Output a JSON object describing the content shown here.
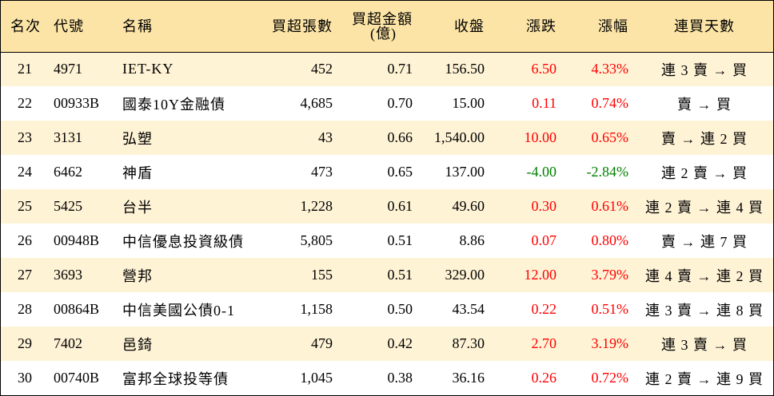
{
  "headers": {
    "rank": "名次",
    "code": "代號",
    "name": "名稱",
    "net_buy_lots": "買超張數",
    "net_buy_amount_line1": "買超金額",
    "net_buy_amount_line2": "(億)",
    "close": "收盤",
    "change": "漲跌",
    "change_pct": "漲幅",
    "buy_days": "連買天數"
  },
  "rows": [
    {
      "rank": "21",
      "code": "4971",
      "name": "IET-KY",
      "lots": "452",
      "amount": "0.71",
      "close": "156.50",
      "change": "6.50",
      "pct": "4.33%",
      "days": "連 3 賣 → 買",
      "dir": "up"
    },
    {
      "rank": "22",
      "code": "00933B",
      "name": "國泰10Y金融債",
      "lots": "4,685",
      "amount": "0.70",
      "close": "15.00",
      "change": "0.11",
      "pct": "0.74%",
      "days": "賣 → 買",
      "dir": "up"
    },
    {
      "rank": "23",
      "code": "3131",
      "name": "弘塑",
      "lots": "43",
      "amount": "0.66",
      "close": "1,540.00",
      "change": "10.00",
      "pct": "0.65%",
      "days": "賣 → 連 2 買",
      "dir": "up"
    },
    {
      "rank": "24",
      "code": "6462",
      "name": "神盾",
      "lots": "473",
      "amount": "0.65",
      "close": "137.00",
      "change": "-4.00",
      "pct": "-2.84%",
      "days": "連 2 賣 → 買",
      "dir": "down"
    },
    {
      "rank": "25",
      "code": "5425",
      "name": "台半",
      "lots": "1,228",
      "amount": "0.61",
      "close": "49.60",
      "change": "0.30",
      "pct": "0.61%",
      "days": "連 2 賣 → 連 4 買",
      "dir": "up"
    },
    {
      "rank": "26",
      "code": "00948B",
      "name": "中信優息投資級債",
      "lots": "5,805",
      "amount": "0.51",
      "close": "8.86",
      "change": "0.07",
      "pct": "0.80%",
      "days": "賣 → 連 7 買",
      "dir": "up"
    },
    {
      "rank": "27",
      "code": "3693",
      "name": "營邦",
      "lots": "155",
      "amount": "0.51",
      "close": "329.00",
      "change": "12.00",
      "pct": "3.79%",
      "days": "連 4 賣 → 連 2 買",
      "dir": "up"
    },
    {
      "rank": "28",
      "code": "00864B",
      "name": "中信美國公債0-1",
      "lots": "1,158",
      "amount": "0.50",
      "close": "43.54",
      "change": "0.22",
      "pct": "0.51%",
      "days": "連 3 賣 → 連 8 買",
      "dir": "up"
    },
    {
      "rank": "29",
      "code": "7402",
      "name": "邑錡",
      "lots": "479",
      "amount": "0.42",
      "close": "87.30",
      "change": "2.70",
      "pct": "3.19%",
      "days": "連 3 賣 → 買",
      "dir": "up"
    },
    {
      "rank": "30",
      "code": "00740B",
      "name": "富邦全球投等債",
      "lots": "1,045",
      "amount": "0.38",
      "close": "36.16",
      "change": "0.26",
      "pct": "0.72%",
      "days": "連 2 賣 → 連 9 買",
      "dir": "up"
    }
  ],
  "colors": {
    "header_bg": "#FCE4A6",
    "row_alt_bg": "#FFF3D6",
    "up": "#FF0000",
    "down": "#008000"
  }
}
